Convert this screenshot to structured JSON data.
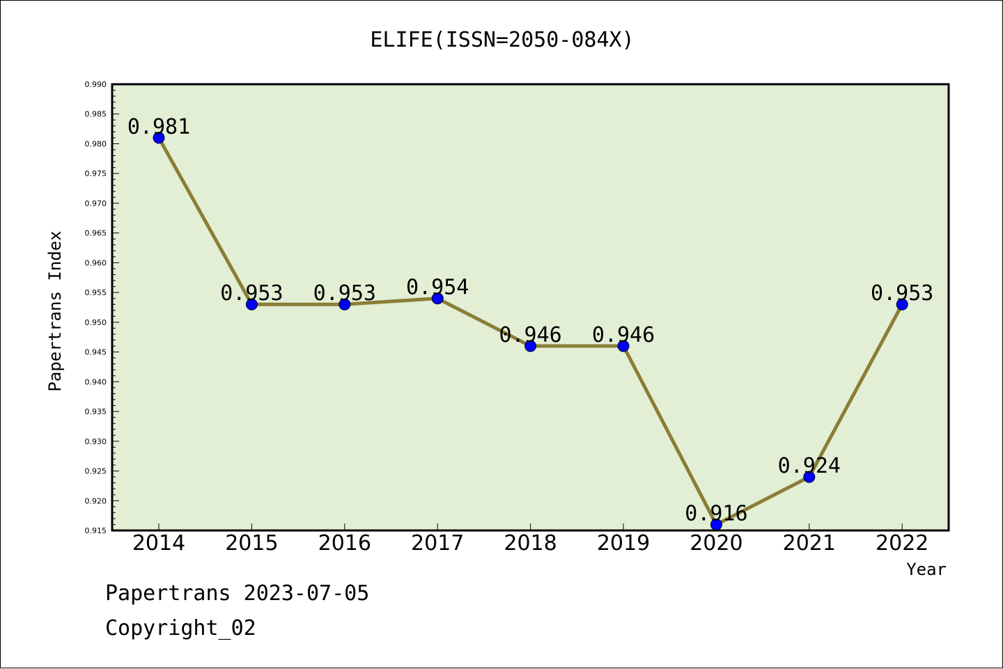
{
  "chart_data": {
    "type": "line",
    "title": "ELIFE(ISSN=2050-084X)",
    "xlabel": "Year",
    "ylabel": "Papertrans Index",
    "categories": [
      "2014",
      "2015",
      "2016",
      "2017",
      "2018",
      "2019",
      "2020",
      "2021",
      "2022"
    ],
    "series": [
      {
        "values": [
          0.981,
          0.953,
          0.953,
          0.954,
          0.946,
          0.946,
          0.916,
          0.924,
          0.953
        ],
        "data_labels": [
          "0.981",
          "0.953",
          "0.953",
          "0.954",
          "0.946",
          "0.946",
          "0.916",
          "0.924",
          "0.953"
        ]
      }
    ],
    "ylim": [
      0.915,
      0.99
    ],
    "y_ticks": [
      "0.915",
      "0.920",
      "0.925",
      "0.930",
      "0.935",
      "0.940",
      "0.945",
      "0.950",
      "0.955",
      "0.960",
      "0.965",
      "0.970",
      "0.975",
      "0.980",
      "0.985",
      "0.990"
    ],
    "grid": false,
    "legend": "none",
    "colors": {
      "plot_background": "#e2efd5",
      "line": "#8b7d37",
      "marker": "#0000ff"
    }
  },
  "footer": {
    "line1": "Papertrans 2023-07-05",
    "line2": "Copyright_02"
  }
}
